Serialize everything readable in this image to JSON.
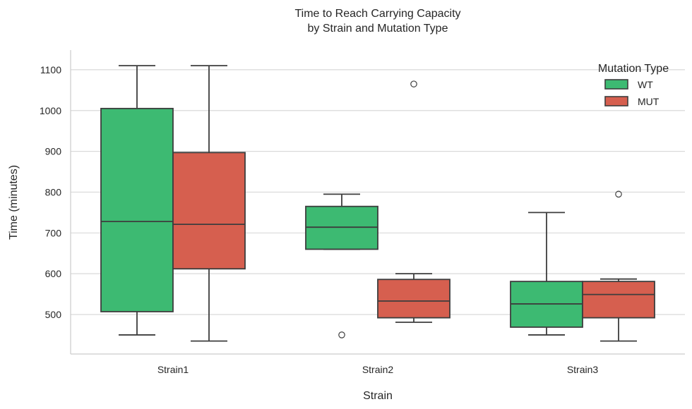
{
  "chart_data": {
    "type": "box",
    "title": [
      "Time to Reach Carrying Capacity",
      "by Strain and Mutation Type"
    ],
    "xlabel": "Strain",
    "ylabel": "Time (minutes)",
    "ylim": [
      405,
      1145
    ],
    "yticks": [
      500,
      600,
      700,
      800,
      900,
      1000,
      1100
    ],
    "grid": "horizontal",
    "legend": {
      "title": "Mutation Type",
      "position": "top-right"
    },
    "categories": [
      "Strain1",
      "Strain2",
      "Strain3"
    ],
    "series": [
      {
        "name": "WT",
        "color": "#3dba72",
        "boxes": [
          {
            "whislo": 450,
            "q1": 507,
            "med": 728,
            "q3": 1005,
            "whishi": 1110,
            "fliers": []
          },
          {
            "whislo": 660,
            "q1": 660,
            "med": 714,
            "q3": 765,
            "whishi": 795,
            "fliers": [
              450
            ]
          },
          {
            "whislo": 450,
            "q1": 469,
            "med": 526,
            "q3": 581,
            "whishi": 750,
            "fliers": []
          }
        ]
      },
      {
        "name": "MUT",
        "color": "#d65f4f",
        "boxes": [
          {
            "whislo": 435,
            "q1": 612,
            "med": 721,
            "q3": 897,
            "whishi": 1110,
            "fliers": []
          },
          {
            "whislo": 481,
            "q1": 492,
            "med": 533,
            "q3": 586,
            "whishi": 600,
            "fliers": [
              1065
            ]
          },
          {
            "whislo": 435,
            "q1": 492,
            "med": 549,
            "q3": 581,
            "whishi": 587,
            "fliers": [
              795
            ]
          }
        ]
      }
    ]
  }
}
